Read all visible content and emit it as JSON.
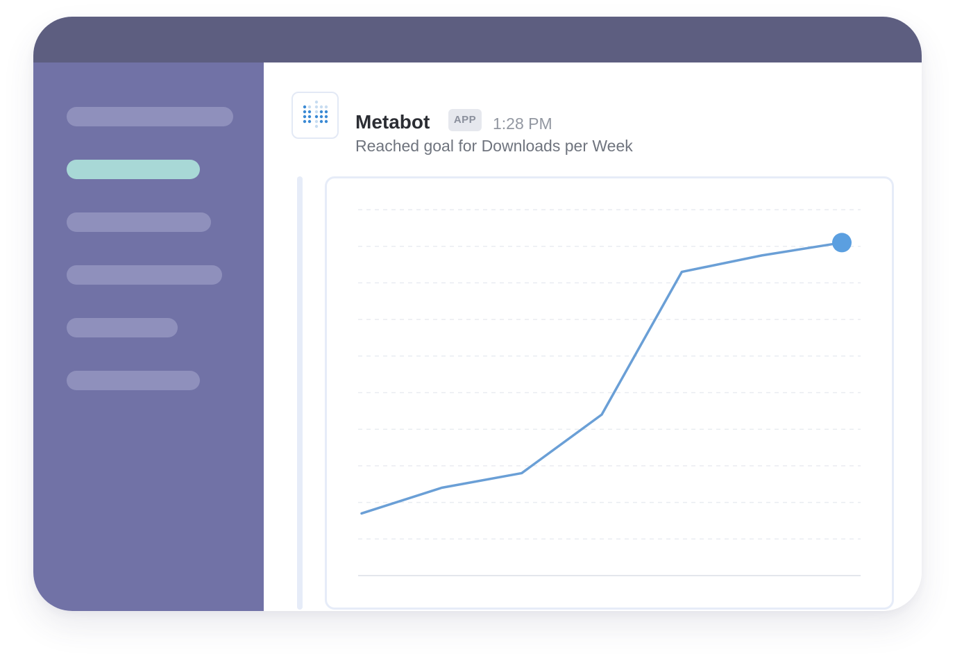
{
  "message": {
    "sender": "Metabot",
    "badge": "APP",
    "time": "1:28 PM",
    "text": "Reached goal for Downloads per Week"
  },
  "colors": {
    "titlebar": "#5d5e80",
    "sidebar": "#7172a6",
    "sidebar_item": "#8f90bc",
    "sidebar_item_active": "#a8d8d6",
    "line": "#6a9fd6",
    "goal_dot": "#5b9fe0"
  },
  "sidebar": {
    "items": [
      {
        "name": "sidebar-item-1",
        "active": false
      },
      {
        "name": "sidebar-item-2",
        "active": true
      },
      {
        "name": "sidebar-item-3",
        "active": false
      },
      {
        "name": "sidebar-item-4",
        "active": false
      },
      {
        "name": "sidebar-item-5",
        "active": false
      },
      {
        "name": "sidebar-item-6",
        "active": false
      }
    ]
  },
  "chart_data": {
    "type": "line",
    "title": "",
    "xlabel": "",
    "ylabel": "",
    "x": [
      1,
      2,
      3,
      4,
      5,
      6,
      7
    ],
    "series": [
      {
        "values": [
          17,
          24,
          28,
          44,
          83,
          87.5,
          91
        ]
      }
    ],
    "ylim": [
      0,
      100
    ],
    "grid": true,
    "highlight_last_point": true
  }
}
